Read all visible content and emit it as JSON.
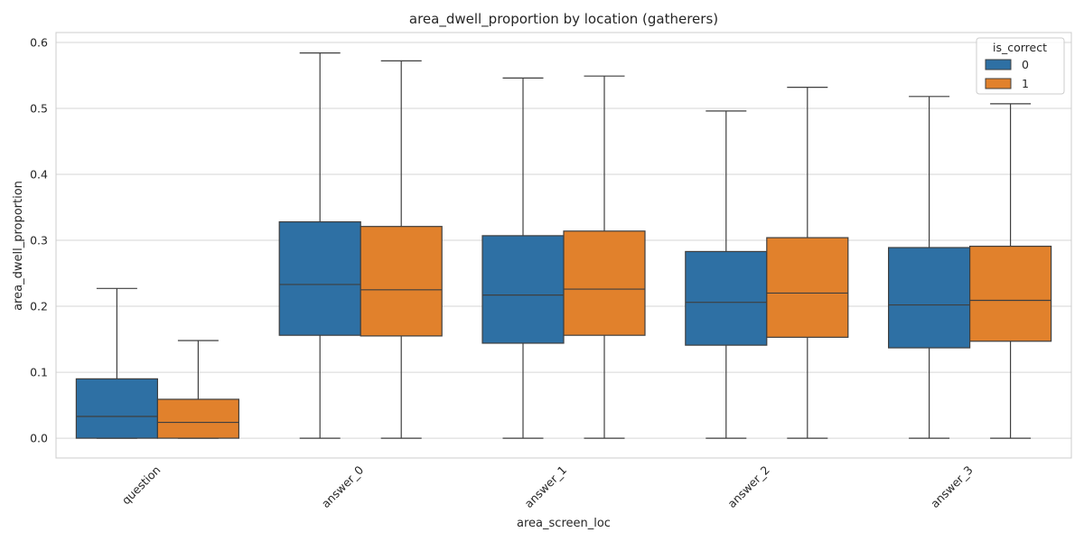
{
  "chart_data": {
    "type": "box",
    "title": "area_dwell_proportion by location (gatherers)",
    "xlabel": "area_screen_loc",
    "ylabel": "area_dwell_proportion",
    "ylim": [
      -0.03,
      0.615
    ],
    "yticks": [
      "0.0",
      "0.1",
      "0.2",
      "0.3",
      "0.4",
      "0.5",
      "0.6"
    ],
    "ytick_values": [
      0.0,
      0.1,
      0.2,
      0.3,
      0.4,
      0.5,
      0.6
    ],
    "categories": [
      "question",
      "answer_0",
      "answer_1",
      "answer_2",
      "answer_3"
    ],
    "grid": true,
    "legend": {
      "title": "is_correct",
      "placement": "top-right"
    },
    "series": [
      {
        "name": "0",
        "color": "#2e70a4",
        "boxes": [
          {
            "whislo": 0.0,
            "q1": 0.0,
            "median": 0.033,
            "q3": 0.09,
            "whishi": 0.227
          },
          {
            "whislo": 0.0,
            "q1": 0.156,
            "median": 0.233,
            "q3": 0.328,
            "whishi": 0.584
          },
          {
            "whislo": 0.0,
            "q1": 0.144,
            "median": 0.217,
            "q3": 0.307,
            "whishi": 0.546
          },
          {
            "whislo": 0.0,
            "q1": 0.141,
            "median": 0.206,
            "q3": 0.283,
            "whishi": 0.496
          },
          {
            "whislo": 0.0,
            "q1": 0.137,
            "median": 0.202,
            "q3": 0.289,
            "whishi": 0.518
          }
        ]
      },
      {
        "name": "1",
        "color": "#e1812c",
        "boxes": [
          {
            "whislo": 0.0,
            "q1": 0.0,
            "median": 0.024,
            "q3": 0.059,
            "whishi": 0.148
          },
          {
            "whislo": 0.0,
            "q1": 0.155,
            "median": 0.225,
            "q3": 0.321,
            "whishi": 0.572
          },
          {
            "whislo": 0.0,
            "q1": 0.156,
            "median": 0.226,
            "q3": 0.314,
            "whishi": 0.549
          },
          {
            "whislo": 0.0,
            "q1": 0.153,
            "median": 0.22,
            "q3": 0.304,
            "whishi": 0.532
          },
          {
            "whislo": 0.0,
            "q1": 0.147,
            "median": 0.209,
            "q3": 0.291,
            "whishi": 0.507
          }
        ]
      }
    ]
  }
}
